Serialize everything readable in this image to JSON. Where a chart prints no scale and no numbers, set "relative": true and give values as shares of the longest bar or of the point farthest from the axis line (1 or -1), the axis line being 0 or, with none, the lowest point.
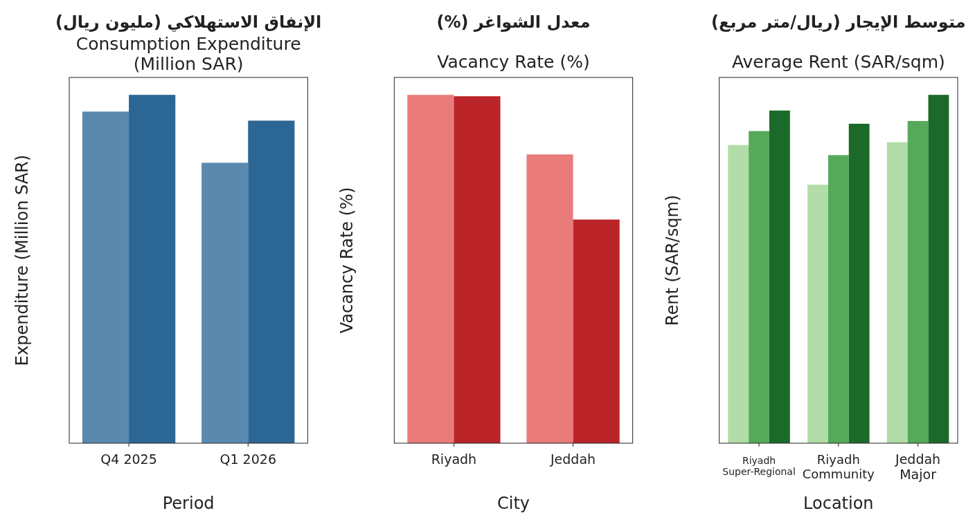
{
  "chart_data": [
    {
      "type": "bar",
      "title": "الإنفاق الاستهلاكي (مليون ريال)",
      "subtitle": "Consumption Expenditure\n(Million SAR)",
      "xlabel": "Period",
      "ylabel": "Expenditure (Million SAR)",
      "relative": true,
      "categories": [
        "Q4 2025",
        "Q1 2026"
      ],
      "series": [
        {
          "color": "#5b89ad",
          "values": [
            0.952,
            0.805
          ]
        },
        {
          "color": "#2c6694",
          "values": [
            1,
            0.926
          ]
        }
      ]
    },
    {
      "type": "bar",
      "title": "معدل الشواغر (%)",
      "subtitle": "Vacancy Rate (%)",
      "xlabel": "City",
      "ylabel": "Vacancy Rate (%)",
      "relative": true,
      "categories": [
        "Riyadh",
        "Jeddah"
      ],
      "series": [
        {
          "color": "#e97b7b",
          "values": [
            1,
            0.829
          ]
        },
        {
          "color": "#bb2429",
          "values": [
            0.996,
            0.642
          ]
        }
      ]
    },
    {
      "type": "bar",
      "title": "متوسط الإيجار (ريال/متر مربع)",
      "subtitle": "Average Rent (SAR/sqm)",
      "xlabel": "Location",
      "ylabel": "Rent (SAR/sqm)",
      "relative": true,
      "categories": [
        "Riyadh\nSuper-Regional",
        "Riyadh\nCommunity",
        "Jeddah\nMajor"
      ],
      "series": [
        {
          "color": "#b2dca8",
          "values": [
            0.856,
            0.742,
            0.864
          ]
        },
        {
          "color": "#56a95a",
          "values": [
            0.896,
            0.827,
            0.925
          ]
        },
        {
          "color": "#1b6a2a",
          "values": [
            0.955,
            0.917,
            1
          ]
        }
      ]
    }
  ]
}
